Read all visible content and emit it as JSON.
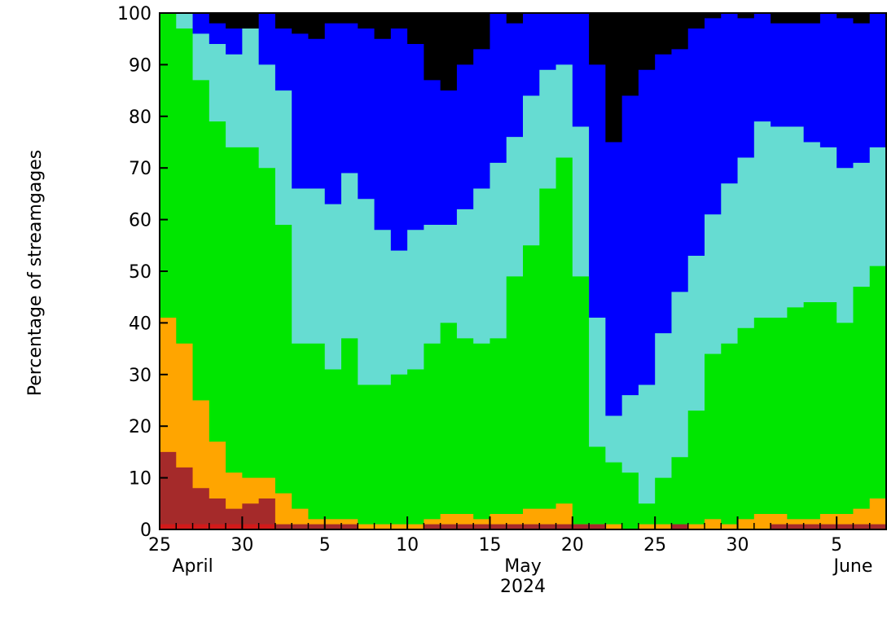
{
  "chart_data": {
    "type": "area",
    "stacked": true,
    "ylabel": "Percentage of streamgages",
    "ylim": [
      0,
      100
    ],
    "yticks": [
      0,
      10,
      20,
      30,
      40,
      50,
      60,
      70,
      80,
      90,
      100
    ],
    "xlim": [
      "2024-04-25",
      "2024-06-08"
    ],
    "x_start": "2024-04-25",
    "xticks": [
      {
        "date": "2024-04-25",
        "label": "25"
      },
      {
        "date": "2024-04-30",
        "label": "30"
      },
      {
        "date": "2024-05-05",
        "label": "5"
      },
      {
        "date": "2024-05-10",
        "label": "10"
      },
      {
        "date": "2024-05-15",
        "label": "15"
      },
      {
        "date": "2024-05-20",
        "label": "20"
      },
      {
        "date": "2024-05-25",
        "label": "25"
      },
      {
        "date": "2024-05-30",
        "label": "30"
      },
      {
        "date": "2024-06-05",
        "label": "5"
      }
    ],
    "month_labels": [
      {
        "date": "2024-04-27",
        "label": "April"
      },
      {
        "date": "2024-05-17",
        "label": "May"
      },
      {
        "date": "2024-06-06",
        "label": "June"
      }
    ],
    "year_label": {
      "date": "2024-05-17",
      "label": "2024"
    },
    "boundary_lines": [
      {
        "color": "#d21a1a",
        "values": [
          1,
          1,
          1,
          1,
          1,
          1,
          1,
          0,
          0,
          0,
          0,
          0,
          0,
          0,
          0,
          0,
          0,
          0,
          0,
          0,
          0,
          0,
          0,
          0,
          0,
          0,
          0,
          0,
          0,
          0,
          0,
          0,
          0,
          0,
          0,
          0,
          0,
          0,
          0,
          0,
          0,
          0,
          0,
          0,
          0
        ]
      },
      {
        "color": "#a52a2a",
        "values": [
          15,
          12,
          8,
          6,
          4,
          5,
          6,
          1,
          1,
          1,
          1,
          1,
          0,
          0,
          0,
          0,
          1,
          1,
          1,
          1,
          1,
          1,
          1,
          1,
          1,
          1,
          1,
          0,
          0,
          0,
          0,
          1,
          0,
          0,
          0,
          0,
          0,
          1,
          1,
          1,
          1,
          1,
          1,
          1,
          1
        ]
      },
      {
        "color": "#ffa500",
        "values": [
          41,
          36,
          25,
          17,
          11,
          10,
          10,
          7,
          4,
          2,
          2,
          2,
          1,
          1,
          1,
          1,
          2,
          3,
          3,
          2,
          3,
          3,
          4,
          4,
          5,
          1,
          1,
          1,
          0,
          1,
          1,
          0,
          1,
          2,
          1,
          2,
          3,
          3,
          2,
          2,
          3,
          3,
          4,
          6,
          6
        ]
      },
      {
        "color": "#00e600",
        "values": [
          100,
          97,
          87,
          79,
          74,
          74,
          70,
          59,
          36,
          36,
          31,
          37,
          28,
          28,
          30,
          31,
          36,
          40,
          37,
          36,
          37,
          49,
          55,
          66,
          72,
          49,
          16,
          13,
          11,
          5,
          10,
          14,
          23,
          34,
          36,
          39,
          41,
          41,
          43,
          44,
          44,
          40,
          47,
          51,
          53
        ]
      },
      {
        "color": "#66dcd2",
        "values": [
          100,
          100,
          96,
          94,
          92,
          97,
          90,
          85,
          66,
          66,
          63,
          69,
          64,
          58,
          54,
          58,
          59,
          59,
          62,
          66,
          71,
          76,
          84,
          89,
          90,
          78,
          41,
          22,
          26,
          28,
          38,
          46,
          53,
          61,
          67,
          72,
          79,
          78,
          78,
          75,
          74,
          70,
          71,
          74,
          80
        ]
      },
      {
        "color": "#0000ff",
        "values": [
          100,
          100,
          100,
          98,
          97,
          97,
          100,
          97,
          96,
          95,
          98,
          98,
          97,
          95,
          97,
          94,
          87,
          85,
          90,
          93,
          100,
          98,
          100,
          100,
          100,
          100,
          90,
          75,
          84,
          89,
          92,
          93,
          97,
          99,
          100,
          99,
          100,
          98,
          98,
          98,
          100,
          99,
          98,
          100,
          100
        ]
      },
      {
        "color": "#000000",
        "values": [
          100,
          100,
          100,
          100,
          100,
          100,
          100,
          100,
          100,
          100,
          100,
          100,
          100,
          100,
          100,
          100,
          100,
          100,
          100,
          100,
          100,
          100,
          100,
          100,
          100,
          100,
          100,
          100,
          100,
          100,
          100,
          100,
          100,
          100,
          100,
          100,
          100,
          100,
          100,
          100,
          100,
          100,
          100,
          100,
          100
        ]
      }
    ]
  }
}
